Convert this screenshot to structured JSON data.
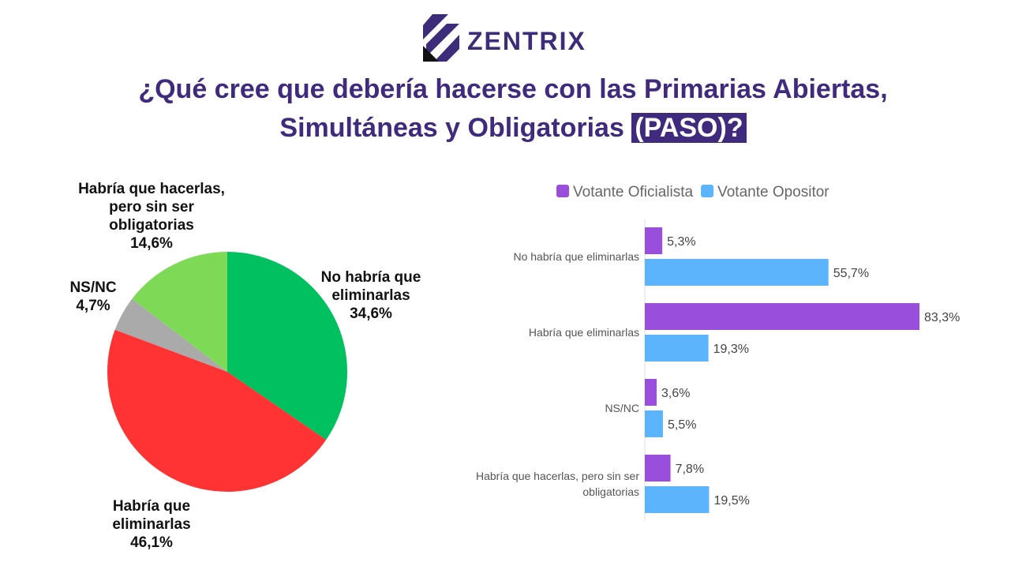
{
  "brand": "ZENTRIX",
  "title": [
    "¿Qué cree que debería hacerse con las Primarias Abiertas,",
    "Simultáneas y Obligatorias"
  ],
  "title_highlight": "(PASO)?",
  "chart_data": [
    {
      "type": "pie",
      "categories": [
        "No habría que eliminarlas",
        "Habría que eliminarlas",
        "NS/NC",
        "Habría que hacerlas, pero sin ser obligatorias"
      ],
      "values": [
        34.6,
        46.1,
        4.7,
        14.6
      ],
      "value_labels": [
        "34,6%",
        "46,1%",
        "4,7%",
        "14,6%"
      ],
      "colors": [
        "#00c060",
        "#ff3333",
        "#aaaaaa",
        "#7ed957"
      ]
    },
    {
      "type": "hbar",
      "categories": [
        "No habría que eliminarlas",
        "Habría que eliminarlas",
        "NS/NC",
        "Habría que hacerlas, pero sin ser obligatorias"
      ],
      "series": [
        {
          "name": "Votante Oficialista",
          "color": "#9a4fdc",
          "values": [
            5.3,
            83.3,
            3.6,
            7.8
          ],
          "value_labels": [
            "5,3%",
            "83,3%",
            "3,6%",
            "7,8%"
          ]
        },
        {
          "name": "Votante Opositor",
          "color": "#5cb4fc",
          "values": [
            55.7,
            19.3,
            5.5,
            19.5
          ],
          "value_labels": [
            "55,7%",
            "19,3%",
            "5,5%",
            "19,5%"
          ]
        }
      ],
      "legend": "top"
    }
  ]
}
